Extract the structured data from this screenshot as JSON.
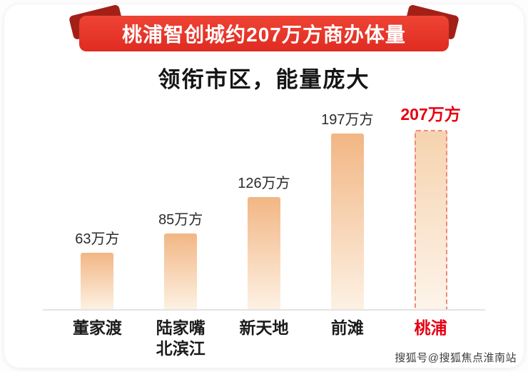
{
  "banner": {
    "title": "桃浦智创城约207万方商办体量"
  },
  "subtitle": "领衔市区，能量庞大",
  "watermark": "搜狐号@搜狐焦点淮南站",
  "colors": {
    "accent_red": "#e6332a",
    "ribbon_fold": "#a32017",
    "highlight_red": "#e60012",
    "bar_top": "#f2b684",
    "bar_bottom": "#fdf1e3",
    "baseline": "#e3e3e3"
  },
  "chart_data": {
    "type": "bar",
    "title": "桃浦智创城约207万方商办体量",
    "subtitle": "领衔市区，能量庞大",
    "categories": [
      "董家渡",
      "陆家嘴\n北滨江",
      "新天地",
      "前滩",
      "桃浦"
    ],
    "values": [
      63,
      85,
      126,
      197,
      207
    ],
    "value_labels": [
      "63万方",
      "85万方",
      "126万方",
      "197万方",
      "207万方"
    ],
    "unit": "万方",
    "highlight_index": 4,
    "highlight_category": "桃浦",
    "ylim": [
      0,
      220
    ],
    "legend": false,
    "grid": false
  }
}
